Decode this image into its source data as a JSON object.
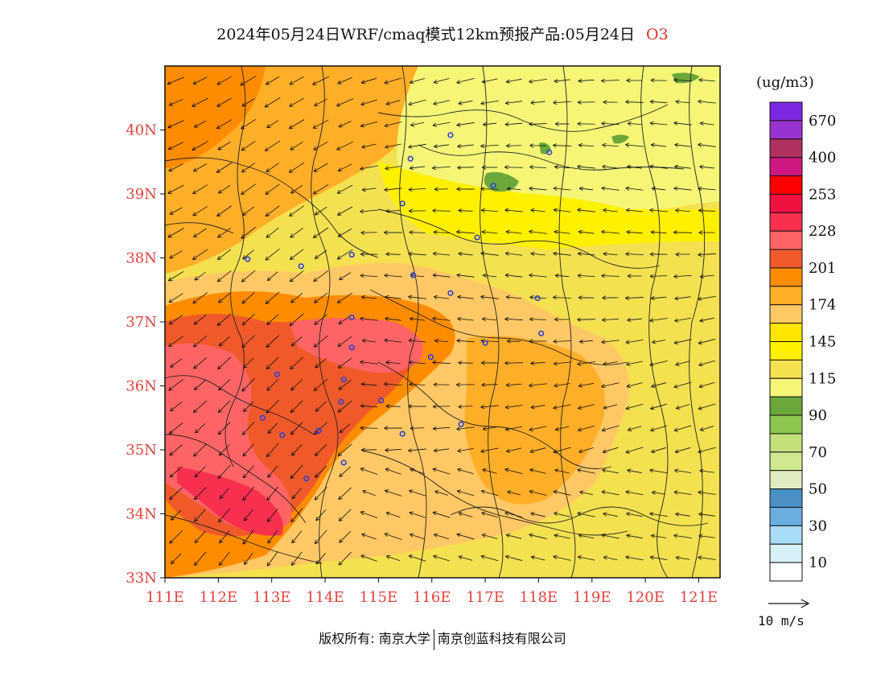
{
  "title": {
    "text": "2024年05月24日WRF/cmaq模式12km预报产品:05月24日",
    "pollutant": "O3"
  },
  "map": {
    "lon_labels": [
      "111E",
      "112E",
      "113E",
      "114E",
      "115E",
      "116E",
      "117E",
      "118E",
      "119E",
      "120E",
      "121E"
    ],
    "lat_labels": [
      "33N",
      "34N",
      "35N",
      "36N",
      "37N",
      "38N",
      "39N",
      "40N"
    ],
    "colors": {
      "tick_label": "#e8413a",
      "station_marker": "#2f3fd6",
      "boundary_line": "#222222",
      "wind_arrow": "#111111"
    },
    "stations": [
      {
        "lon": 116.35,
        "lat": 39.92
      },
      {
        "lon": 115.6,
        "lat": 39.55
      },
      {
        "lon": 117.15,
        "lat": 39.13
      },
      {
        "lon": 118.2,
        "lat": 39.65
      },
      {
        "lon": 115.45,
        "lat": 38.85
      },
      {
        "lon": 116.85,
        "lat": 38.32
      },
      {
        "lon": 112.55,
        "lat": 37.98
      },
      {
        "lon": 113.55,
        "lat": 37.87
      },
      {
        "lon": 114.5,
        "lat": 38.05
      },
      {
        "lon": 115.65,
        "lat": 37.73
      },
      {
        "lon": 116.35,
        "lat": 37.45
      },
      {
        "lon": 117.98,
        "lat": 37.37
      },
      {
        "lon": 118.05,
        "lat": 36.82
      },
      {
        "lon": 117.0,
        "lat": 36.67
      },
      {
        "lon": 114.5,
        "lat": 37.07
      },
      {
        "lon": 114.5,
        "lat": 36.6
      },
      {
        "lon": 115.98,
        "lat": 36.45
      },
      {
        "lon": 113.1,
        "lat": 36.18
      },
      {
        "lon": 114.35,
        "lat": 36.1
      },
      {
        "lon": 114.3,
        "lat": 35.75
      },
      {
        "lon": 115.05,
        "lat": 35.77
      },
      {
        "lon": 112.83,
        "lat": 35.5
      },
      {
        "lon": 113.2,
        "lat": 35.23
      },
      {
        "lon": 113.88,
        "lat": 35.3
      },
      {
        "lon": 115.45,
        "lat": 35.25
      },
      {
        "lon": 116.55,
        "lat": 35.4
      },
      {
        "lon": 114.35,
        "lat": 34.8
      },
      {
        "lon": 113.65,
        "lat": 34.55
      }
    ]
  },
  "colorbar": {
    "units": "(ug/m3)",
    "colors": [
      "#7b28e0",
      "#9a32d0",
      "#b03060",
      "#cc1880",
      "#ff0000",
      "#f01040",
      "#f7304e",
      "#ff6464",
      "#f05a2a",
      "#ff8c00",
      "#ffae28",
      "#ffc864",
      "#ffe600",
      "#fff000",
      "#f5e050",
      "#f5f576",
      "#6aa83a",
      "#8cc850",
      "#c3e07a",
      "#d0e890",
      "#e0ecc0",
      "#4a90c4",
      "#6aaee0",
      "#a8dcf8",
      "#d8f0f8",
      "#ffffff"
    ],
    "labels": [
      "670",
      "400",
      "253",
      "228",
      "201",
      "174",
      "145",
      "115",
      "90",
      "70",
      "50",
      "30",
      "10"
    ]
  },
  "wind_reference": {
    "label": "10 m/s"
  },
  "copyright": {
    "left": "版权所有: 南京大学",
    "right": "南京创蓝科技有限公司"
  }
}
